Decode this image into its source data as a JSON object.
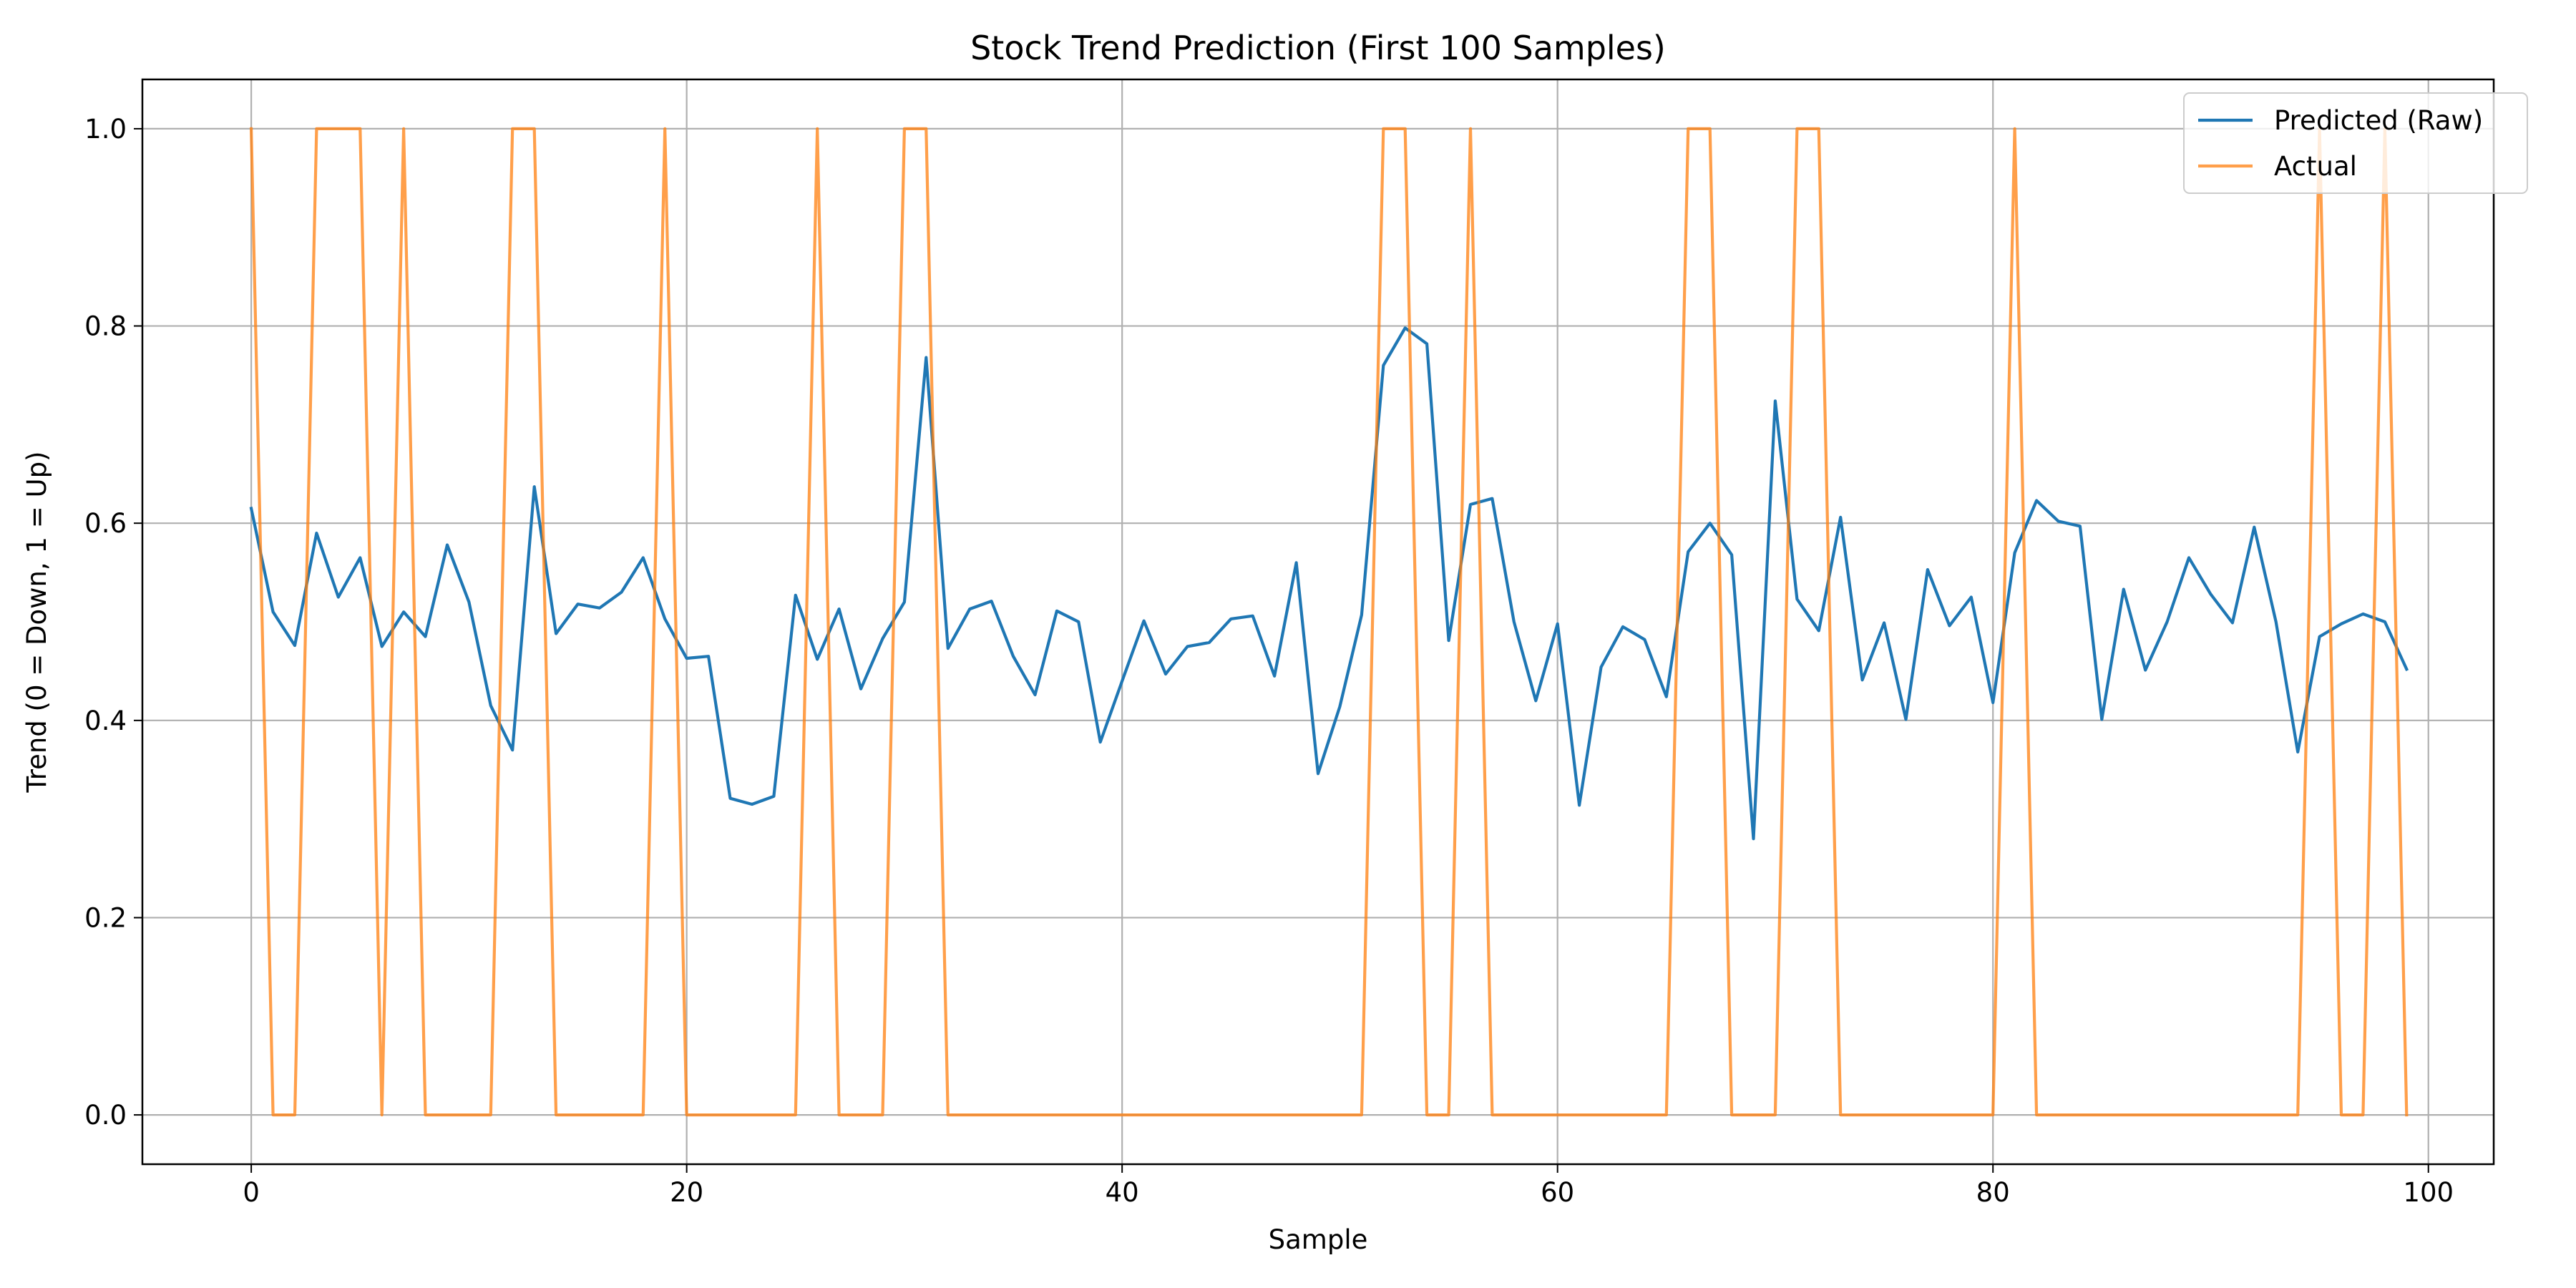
{
  "chart_data": {
    "type": "line",
    "title": "Stock Trend Prediction (First 100 Samples)",
    "xlabel": "Sample",
    "ylabel": "Trend (0 = Down, 1 = Up)",
    "xlim": [
      -5,
      103
    ],
    "ylim": [
      -0.05,
      1.05
    ],
    "xticks": [
      0,
      20,
      40,
      60,
      80,
      100
    ],
    "yticks": [
      0.0,
      0.2,
      0.4,
      0.6,
      0.8,
      1.0
    ],
    "xtick_labels": [
      "0",
      "20",
      "40",
      "60",
      "80",
      "100"
    ],
    "ytick_labels": [
      "0.0",
      "0.2",
      "0.4",
      "0.6",
      "0.8",
      "1.0"
    ],
    "grid": true,
    "legend_position": "top-right",
    "x": [
      0,
      1,
      2,
      3,
      4,
      5,
      6,
      7,
      8,
      9,
      10,
      11,
      12,
      13,
      14,
      15,
      16,
      17,
      18,
      19,
      20,
      21,
      22,
      23,
      24,
      25,
      26,
      27,
      28,
      29,
      30,
      31,
      32,
      33,
      34,
      35,
      36,
      37,
      38,
      39,
      40,
      41,
      42,
      43,
      44,
      45,
      46,
      47,
      48,
      49,
      50,
      51,
      52,
      53,
      54,
      55,
      56,
      57,
      58,
      59,
      60,
      61,
      62,
      63,
      64,
      65,
      66,
      67,
      68,
      69,
      70,
      71,
      72,
      73,
      74,
      75,
      76,
      77,
      78,
      79,
      80,
      81,
      82,
      83,
      84,
      85,
      86,
      87,
      88,
      89,
      90,
      91,
      92,
      93,
      94,
      95,
      96,
      97,
      98,
      99
    ],
    "series": [
      {
        "name": "Predicted (Raw)",
        "color": "#1f77b4",
        "values": [
          0.615,
          0.51,
          0.476,
          0.59,
          0.525,
          0.565,
          0.475,
          0.51,
          0.485,
          0.578,
          0.52,
          0.415,
          0.37,
          0.637,
          0.488,
          0.518,
          0.514,
          0.53,
          0.565,
          0.503,
          0.463,
          0.465,
          0.321,
          0.315,
          0.323,
          0.527,
          0.462,
          0.513,
          0.432,
          0.483,
          0.52,
          0.768,
          0.473,
          0.513,
          0.521,
          0.465,
          0.426,
          0.511,
          0.5,
          0.378,
          0.44,
          0.501,
          0.447,
          0.475,
          0.479,
          0.503,
          0.506,
          0.445,
          0.56,
          0.346,
          0.414,
          0.507,
          0.76,
          0.798,
          0.782,
          0.481,
          0.619,
          0.625,
          0.5,
          0.42,
          0.498,
          0.314,
          0.454,
          0.495,
          0.482,
          0.424,
          0.571,
          0.6,
          0.568,
          0.28,
          0.724,
          0.523,
          0.491,
          0.606,
          0.441,
          0.499,
          0.401,
          0.553,
          0.496,
          0.525,
          0.418,
          0.57,
          0.623,
          0.602,
          0.597,
          0.401,
          0.533,
          0.451,
          0.5,
          0.565,
          0.528,
          0.499,
          0.596,
          0.5,
          0.368,
          0.485,
          0.498,
          0.508,
          0.5,
          0.452
        ]
      },
      {
        "name": "Actual",
        "color": "#ff7f0e",
        "values": [
          1,
          0,
          0,
          1,
          1,
          1,
          0,
          1,
          0,
          0,
          0,
          0,
          1,
          1,
          0,
          0,
          0,
          0,
          0,
          1,
          0,
          0,
          0,
          0,
          0,
          0,
          1,
          0,
          0,
          0,
          1,
          1,
          0,
          0,
          0,
          0,
          0,
          0,
          0,
          0,
          0,
          0,
          0,
          0,
          0,
          0,
          0,
          0,
          0,
          0,
          0,
          0,
          1,
          1,
          0,
          0,
          1,
          0,
          0,
          0,
          0,
          0,
          0,
          0,
          0,
          0,
          1,
          1,
          0,
          0,
          0,
          1,
          1,
          0,
          0,
          0,
          0,
          0,
          0,
          0,
          0,
          1,
          0,
          0,
          0,
          0,
          0,
          0,
          0,
          0,
          0,
          0,
          0,
          0,
          0,
          1,
          0,
          0,
          1,
          0
        ]
      }
    ]
  }
}
